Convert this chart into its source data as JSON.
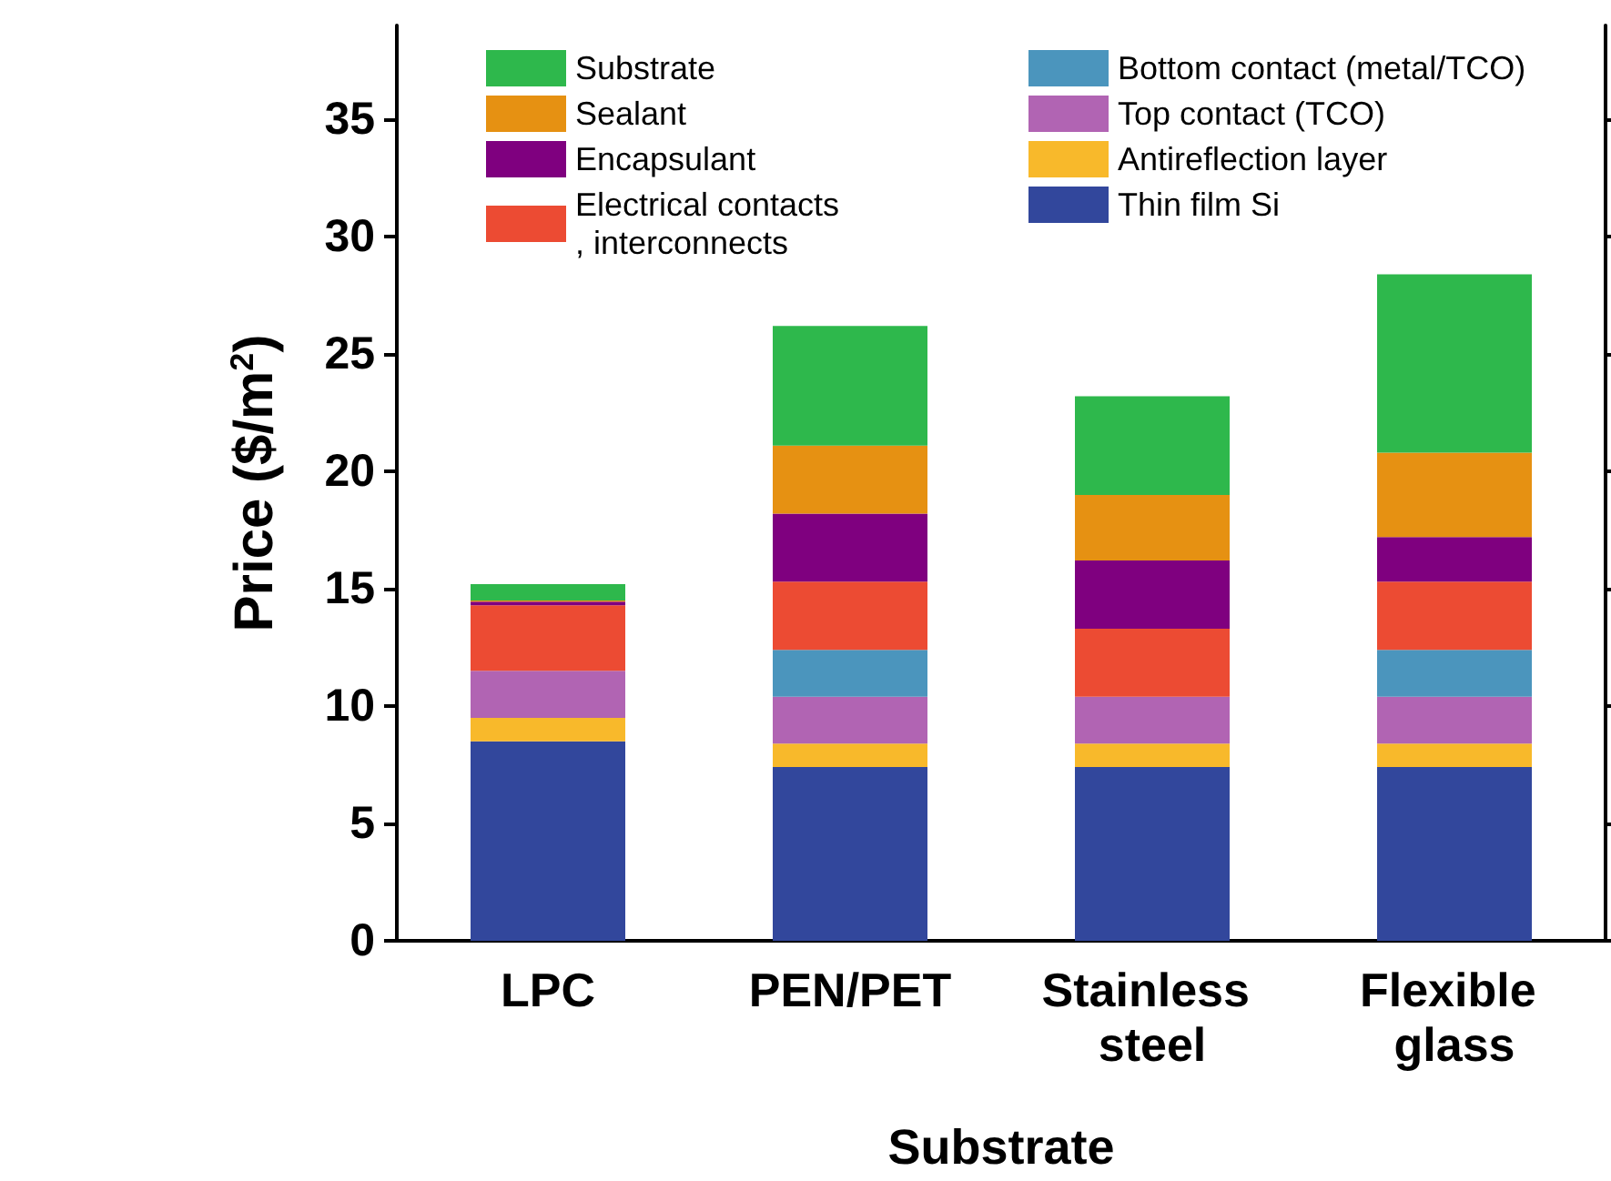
{
  "chart_data": {
    "type": "bar",
    "stacked": true,
    "xlabel": "Substrate",
    "ylabel": "Price ($/m$^{2}$)",
    "categories": [
      "LPC",
      "PEN/PET",
      "Stainless steel",
      "Flexible glass"
    ],
    "series": [
      {
        "name": "Thin film Si",
        "color": "#32479c",
        "values": [
          8.5,
          7.4,
          7.4,
          7.4
        ]
      },
      {
        "name": "Antireflection layer",
        "color": "#f8b92b",
        "values": [
          1.0,
          1.0,
          1.0,
          1.0
        ]
      },
      {
        "name": "Top contact (TCO)",
        "color": "#b164b3",
        "values": [
          2.0,
          2.0,
          2.0,
          2.0
        ]
      },
      {
        "name": "Bottom contact (metal/TCO)",
        "color": "#4b95bd",
        "values": [
          0,
          2.0,
          0,
          2.0
        ]
      },
      {
        "name": "Electrical contacts, interconnects",
        "color": "#ec4b33",
        "values": [
          2.8,
          2.9,
          2.9,
          2.9
        ]
      },
      {
        "name": "Encapsulant",
        "color": "#7f007f",
        "values": [
          0.15,
          2.9,
          2.9,
          1.9
        ]
      },
      {
        "name": "Sealant",
        "color": "#e69112",
        "values": [
          0.05,
          2.9,
          2.8,
          3.6
        ]
      },
      {
        "name": "Substrate",
        "color": "#2eb84c",
        "values": [
          0.7,
          5.1,
          4.2,
          7.6
        ]
      }
    ],
    "ylim": [
      0,
      39
    ],
    "yticks": [
      0,
      5,
      10,
      15,
      20,
      25,
      30,
      35
    ],
    "grid": false,
    "legend": "top"
  }
}
